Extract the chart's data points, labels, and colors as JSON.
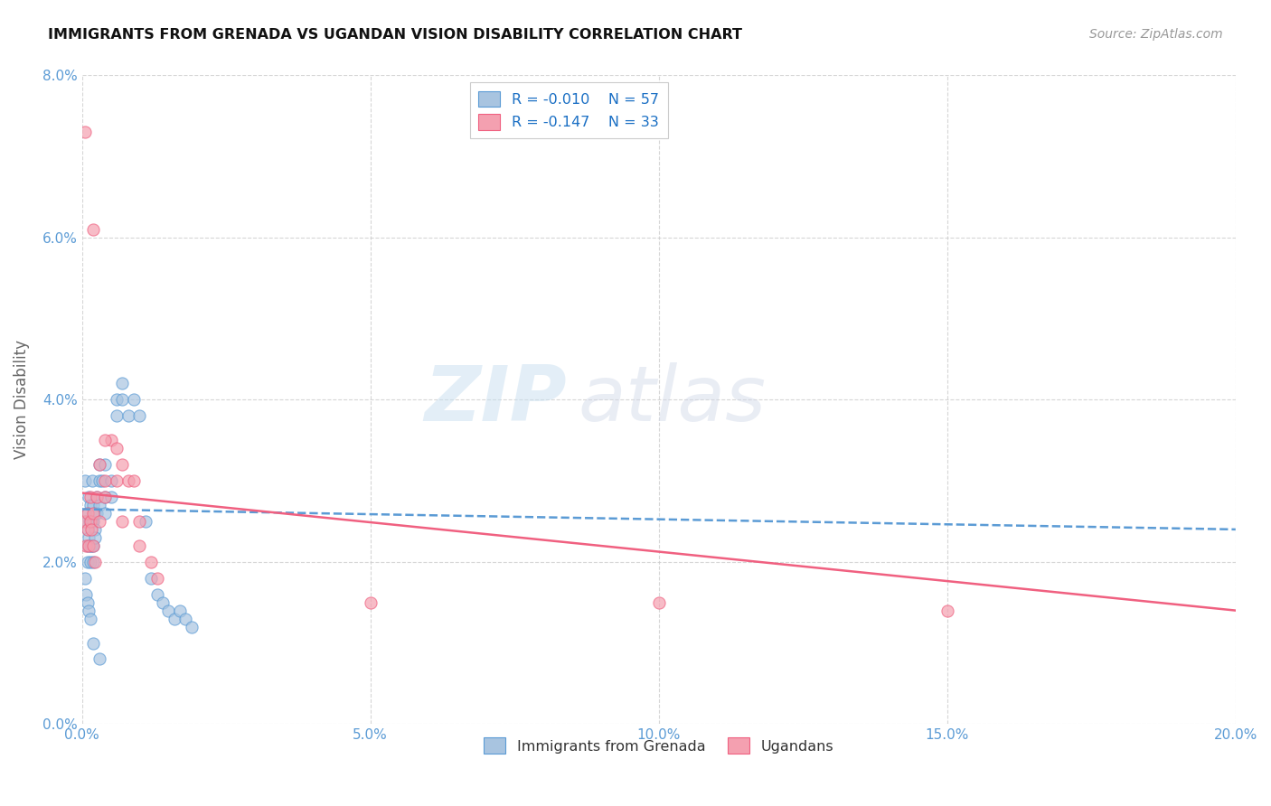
{
  "title": "IMMIGRANTS FROM GRENADA VS UGANDAN VISION DISABILITY CORRELATION CHART",
  "source": "Source: ZipAtlas.com",
  "ylabel": "Vision Disability",
  "xlabel_ticks": [
    "0.0%",
    "5.0%",
    "10.0%",
    "15.0%",
    "20.0%"
  ],
  "ylabel_ticks": [
    "0.0%",
    "2.0%",
    "4.0%",
    "6.0%",
    "8.0%"
  ],
  "xlim": [
    0,
    0.2
  ],
  "ylim": [
    0,
    0.08
  ],
  "legend_label1": "Immigrants from Grenada",
  "legend_label2": "Ugandans",
  "r1": "-0.010",
  "n1": "57",
  "r2": "-0.147",
  "n2": "33",
  "color1": "#a8c4e0",
  "color2": "#f4a0b0",
  "line1_color": "#5b9bd5",
  "line2_color": "#f06080",
  "watermark_zip": "ZIP",
  "watermark_atlas": "atlas",
  "blue_scatter_x": [
    0.0005,
    0.0008,
    0.001,
    0.001,
    0.001,
    0.001,
    0.0012,
    0.0012,
    0.0013,
    0.0015,
    0.0015,
    0.0015,
    0.0017,
    0.0017,
    0.0018,
    0.0018,
    0.002,
    0.002,
    0.002,
    0.002,
    0.0022,
    0.0022,
    0.0023,
    0.0025,
    0.0025,
    0.003,
    0.003,
    0.003,
    0.0035,
    0.004,
    0.004,
    0.004,
    0.005,
    0.005,
    0.006,
    0.006,
    0.007,
    0.007,
    0.008,
    0.009,
    0.01,
    0.011,
    0.012,
    0.013,
    0.014,
    0.015,
    0.016,
    0.017,
    0.018,
    0.019,
    0.0005,
    0.0007,
    0.001,
    0.0012,
    0.0015,
    0.002,
    0.003
  ],
  "blue_scatter_y": [
    0.03,
    0.025,
    0.026,
    0.024,
    0.022,
    0.02,
    0.028,
    0.023,
    0.025,
    0.027,
    0.022,
    0.02,
    0.025,
    0.022,
    0.03,
    0.025,
    0.027,
    0.025,
    0.022,
    0.02,
    0.026,
    0.024,
    0.023,
    0.028,
    0.026,
    0.032,
    0.03,
    0.027,
    0.03,
    0.032,
    0.028,
    0.026,
    0.03,
    0.028,
    0.04,
    0.038,
    0.042,
    0.04,
    0.038,
    0.04,
    0.038,
    0.025,
    0.018,
    0.016,
    0.015,
    0.014,
    0.013,
    0.014,
    0.013,
    0.012,
    0.018,
    0.016,
    0.015,
    0.014,
    0.013,
    0.01,
    0.008
  ],
  "pink_scatter_x": [
    0.0005,
    0.0007,
    0.001,
    0.001,
    0.0012,
    0.0015,
    0.0015,
    0.0017,
    0.002,
    0.002,
    0.0022,
    0.0025,
    0.003,
    0.003,
    0.004,
    0.004,
    0.005,
    0.006,
    0.006,
    0.007,
    0.007,
    0.008,
    0.009,
    0.01,
    0.01,
    0.012,
    0.013,
    0.05,
    0.1,
    0.15,
    0.0005,
    0.002,
    0.004
  ],
  "pink_scatter_y": [
    0.025,
    0.022,
    0.026,
    0.024,
    0.022,
    0.028,
    0.025,
    0.024,
    0.026,
    0.022,
    0.02,
    0.028,
    0.032,
    0.025,
    0.03,
    0.028,
    0.035,
    0.034,
    0.03,
    0.032,
    0.025,
    0.03,
    0.03,
    0.025,
    0.022,
    0.02,
    0.018,
    0.015,
    0.015,
    0.014,
    0.073,
    0.061,
    0.035
  ],
  "blue_trend_x": [
    0.0,
    0.2
  ],
  "blue_trend_y": [
    0.0265,
    0.024
  ],
  "pink_trend_x": [
    0.0,
    0.2
  ],
  "pink_trend_y": [
    0.0285,
    0.014
  ]
}
